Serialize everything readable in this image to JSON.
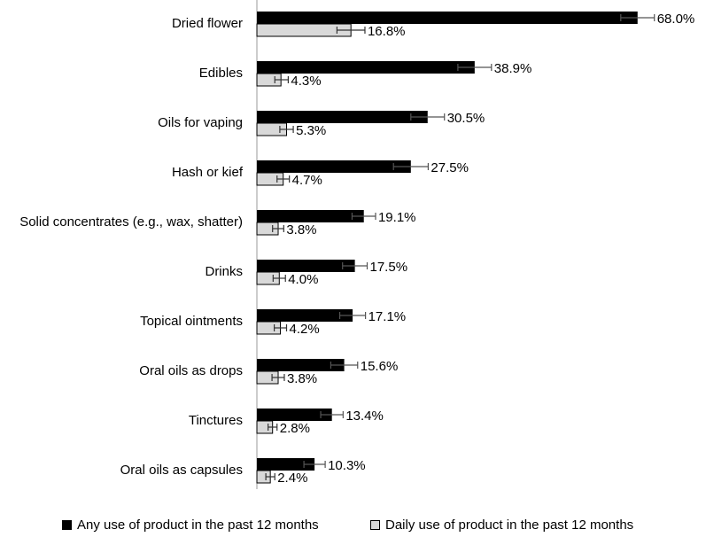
{
  "chart_data": {
    "type": "bar",
    "orientation": "horizontal",
    "categories": [
      "Dried flower",
      "Edibles",
      "Oils for vaping",
      "Hash or kief",
      "Solid concentrates (e.g., wax, shatter)",
      "Drinks",
      "Topical ointments",
      "Oral oils as drops",
      "Tinctures",
      "Oral oils as capsules"
    ],
    "series": [
      {
        "name": "Any use of product in the past 12 months",
        "color": "#000000",
        "values": [
          68.0,
          38.9,
          30.5,
          27.5,
          19.1,
          17.5,
          17.1,
          15.6,
          13.4,
          10.3
        ],
        "labels": [
          "68.0%",
          "38.9%",
          "30.5%",
          "27.5%",
          "19.1%",
          "17.5%",
          "17.1%",
          "15.6%",
          "13.4%",
          "10.3%"
        ],
        "error_low": [
          65.0,
          35.9,
          27.5,
          24.4,
          17.0,
          15.3,
          14.8,
          13.2,
          11.4,
          8.4
        ],
        "error_high": [
          71.0,
          41.9,
          33.5,
          30.6,
          21.2,
          19.7,
          19.4,
          18.0,
          15.4,
          12.2
        ]
      },
      {
        "name": "Daily use of product in the past 12 months",
        "color": "#d9d9d9",
        "values": [
          16.8,
          4.3,
          5.3,
          4.7,
          3.8,
          4.0,
          4.2,
          3.8,
          2.8,
          2.4
        ],
        "labels": [
          "16.8%",
          "4.3%",
          "5.3%",
          "4.7%",
          "3.8%",
          "4.0%",
          "4.2%",
          "3.8%",
          "2.8%",
          "2.4%"
        ],
        "error_low": [
          14.3,
          3.2,
          4.1,
          3.6,
          2.8,
          2.9,
          3.1,
          2.7,
          2.0,
          1.6
        ],
        "error_high": [
          19.3,
          5.6,
          6.5,
          5.8,
          4.8,
          5.1,
          5.3,
          4.9,
          3.6,
          3.2
        ]
      }
    ],
    "xlim": [
      0,
      100
    ],
    "grid": false,
    "legend_position": "bottom"
  }
}
